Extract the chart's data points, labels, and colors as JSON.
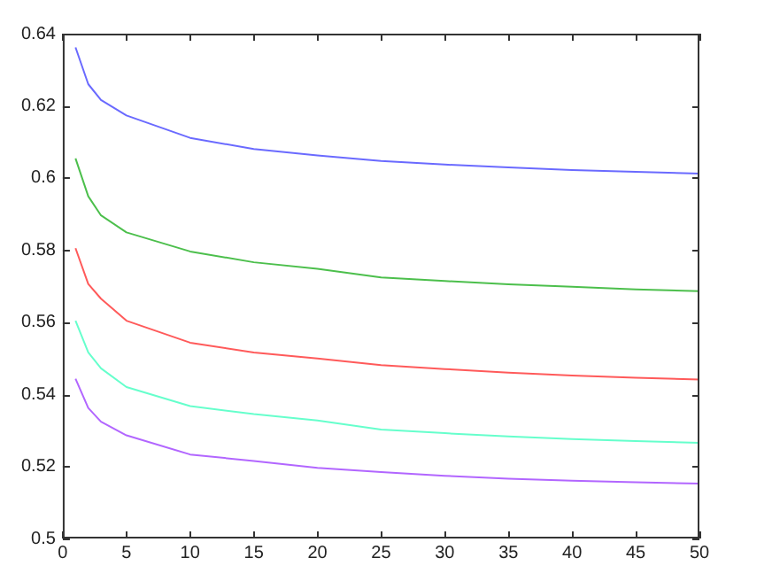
{
  "chart_data": {
    "type": "line",
    "x": [
      1,
      2,
      3,
      5,
      10,
      15,
      20,
      25,
      30,
      35,
      40,
      45,
      50
    ],
    "series": [
      {
        "color": "#6a6aff",
        "values": [
          0.6362,
          0.626,
          0.6216,
          0.6173,
          0.6111,
          0.608,
          0.6062,
          0.6047,
          0.6037,
          0.6029,
          0.6022,
          0.6017,
          0.6012
        ]
      },
      {
        "color": "#4cbf4c",
        "values": [
          0.6054,
          0.5949,
          0.5896,
          0.5849,
          0.5796,
          0.5766,
          0.5748,
          0.5724,
          0.5714,
          0.5705,
          0.5698,
          0.5691,
          0.5686
        ]
      },
      {
        "color": "#ff5a5a",
        "values": [
          0.5805,
          0.5706,
          0.5665,
          0.5604,
          0.5543,
          0.5516,
          0.5499,
          0.5481,
          0.547,
          0.546,
          0.5452,
          0.5446,
          0.5441
        ]
      },
      {
        "color": "#66ffcc",
        "values": [
          0.5604,
          0.5516,
          0.5472,
          0.542,
          0.5367,
          0.5345,
          0.5327,
          0.5302,
          0.5292,
          0.5283,
          0.5276,
          0.527,
          0.5265
        ]
      },
      {
        "color": "#b266ff",
        "values": [
          0.5443,
          0.5362,
          0.5324,
          0.5286,
          0.5233,
          0.5215,
          0.5196,
          0.5184,
          0.5174,
          0.5166,
          0.516,
          0.5156,
          0.5152
        ]
      }
    ],
    "xlim": [
      0,
      50
    ],
    "xticks": [
      0,
      5,
      10,
      15,
      20,
      25,
      30,
      35,
      40,
      45,
      50
    ],
    "ylim": [
      0.5,
      0.64
    ],
    "yticks": [
      0.5,
      0.52,
      0.54,
      0.56,
      0.58,
      0.6,
      0.62,
      0.64
    ],
    "grid": false,
    "legend": false,
    "marker": "none",
    "line_style": "solid"
  }
}
